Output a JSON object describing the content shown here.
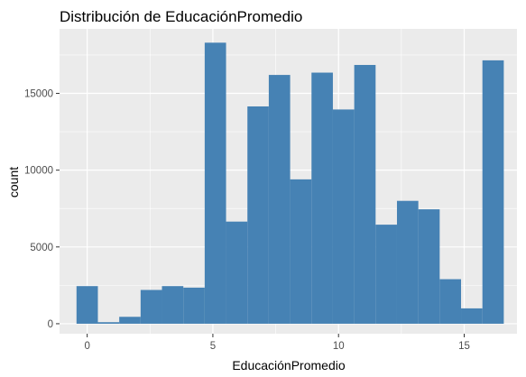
{
  "chart_data": {
    "type": "bar",
    "title": "Distribución de EducaciónPromedio",
    "xlabel": "EducaciónPromedio",
    "ylabel": "count",
    "xlim": [
      -1.1,
      17.1
    ],
    "ylim": [
      -650,
      19200
    ],
    "x_ticks": [
      0,
      5,
      10,
      15
    ],
    "y_ticks": [
      0,
      5000,
      10000,
      15000
    ],
    "bin_width": 0.85,
    "bins": [
      {
        "x": 0.0,
        "count": 2450
      },
      {
        "x": 0.85,
        "count": 100
      },
      {
        "x": 1.7,
        "count": 450
      },
      {
        "x": 2.55,
        "count": 2200
      },
      {
        "x": 3.4,
        "count": 2450
      },
      {
        "x": 4.25,
        "count": 2350
      },
      {
        "x": 5.1,
        "count": 18300
      },
      {
        "x": 5.95,
        "count": 6650
      },
      {
        "x": 6.8,
        "count": 14150
      },
      {
        "x": 7.65,
        "count": 16200
      },
      {
        "x": 8.5,
        "count": 9400
      },
      {
        "x": 9.35,
        "count": 16350
      },
      {
        "x": 10.2,
        "count": 13950
      },
      {
        "x": 11.05,
        "count": 16850
      },
      {
        "x": 11.9,
        "count": 6450
      },
      {
        "x": 12.75,
        "count": 8000
      },
      {
        "x": 13.6,
        "count": 7450
      },
      {
        "x": 14.45,
        "count": 2900
      },
      {
        "x": 15.3,
        "count": 1000
      },
      {
        "x": 16.15,
        "count": 17150
      }
    ],
    "grid": true,
    "colors": {
      "bar": "#4682B4",
      "panel_background": "#EBEBEB",
      "gridline": "#FFFFFF",
      "tick_text": "#4D4D4D",
      "tick_mark": "#333333"
    }
  }
}
